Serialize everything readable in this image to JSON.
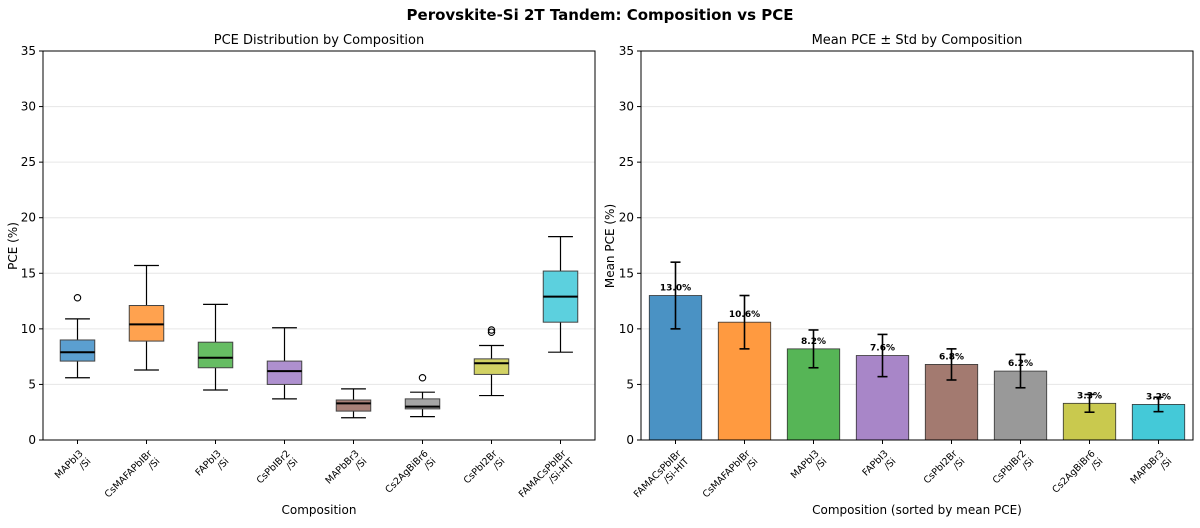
{
  "suptitle": "Perovskite-Si 2T Tandem: Composition vs PCE",
  "chart_data": [
    {
      "type": "box",
      "title": "PCE Distribution by Composition",
      "xlabel": "Composition",
      "ylabel": "PCE (%)",
      "ylim": [
        0,
        35
      ],
      "yticks": [
        0,
        5,
        10,
        15,
        20,
        25,
        30,
        35
      ],
      "grid": "y",
      "categories": [
        "MAPbI3\n/Si",
        "CsMAFAPbIBr\n/Si",
        "FAPbI3\n/Si",
        "CsPbIBr2\n/Si",
        "MAPbBr3\n/Si",
        "Cs2AgBiBr6\n/Si",
        "CsPbI2Br\n/Si",
        "FAMACsPbIBr\n/Si-HIT"
      ],
      "colors": [
        "#5b9fd0",
        "#ffa24f",
        "#66bd63",
        "#ae90cf",
        "#a98178",
        "#a5a5a5",
        "#d2d264",
        "#5cd0de"
      ],
      "boxes": [
        {
          "whislo": 5.6,
          "q1": 7.1,
          "med": 7.9,
          "q3": 9.0,
          "whishi": 10.9,
          "fliers": [
            12.8
          ]
        },
        {
          "whislo": 6.3,
          "q1": 8.9,
          "med": 10.4,
          "q3": 12.1,
          "whishi": 15.7,
          "fliers": []
        },
        {
          "whislo": 4.5,
          "q1": 6.5,
          "med": 7.4,
          "q3": 8.8,
          "whishi": 12.2,
          "fliers": []
        },
        {
          "whislo": 3.7,
          "q1": 5.0,
          "med": 6.2,
          "q3": 7.1,
          "whishi": 10.1,
          "fliers": []
        },
        {
          "whislo": 2.0,
          "q1": 2.6,
          "med": 3.3,
          "q3": 3.6,
          "whishi": 4.6,
          "fliers": []
        },
        {
          "whislo": 2.1,
          "q1": 2.8,
          "med": 3.0,
          "q3": 3.7,
          "whishi": 4.3,
          "fliers": [
            5.6
          ]
        },
        {
          "whislo": 4.0,
          "q1": 5.9,
          "med": 6.9,
          "q3": 7.3,
          "whishi": 8.5,
          "fliers": [
            9.7,
            9.9
          ]
        },
        {
          "whislo": 7.9,
          "q1": 10.6,
          "med": 12.9,
          "q3": 15.2,
          "whishi": 18.3,
          "fliers": []
        }
      ]
    },
    {
      "type": "bar",
      "title": "Mean PCE ± Std by Composition",
      "xlabel": "Composition (sorted by mean PCE)",
      "ylabel": "Mean PCE (%)",
      "ylim": [
        0,
        35
      ],
      "yticks": [
        0,
        5,
        10,
        15,
        20,
        25,
        30,
        35
      ],
      "grid": "y",
      "categories": [
        "FAMACsPbIBr\n/Si-HIT",
        "CsMAFAPbIBr\n/Si",
        "MAPbI3\n/Si",
        "FAPbI3\n/Si",
        "CsPbI2Br\n/Si",
        "CsPbIBr2\n/Si",
        "Cs2AgBiBr6\n/Si",
        "MAPbBr3\n/Si"
      ],
      "values": [
        13.0,
        10.6,
        8.2,
        7.6,
        6.8,
        6.2,
        3.3,
        3.2
      ],
      "std": [
        3.0,
        2.4,
        1.7,
        1.9,
        1.4,
        1.5,
        0.8,
        0.65
      ],
      "labels": [
        "13.0%",
        "10.6%",
        "8.2%",
        "7.6%",
        "6.8%",
        "6.2%",
        "3.3%",
        "3.2%"
      ],
      "colors": [
        "#4a92c4",
        "#ff9a40",
        "#56b556",
        "#a886c8",
        "#a37a70",
        "#999999",
        "#c9c94e",
        "#44c9d8"
      ]
    }
  ]
}
